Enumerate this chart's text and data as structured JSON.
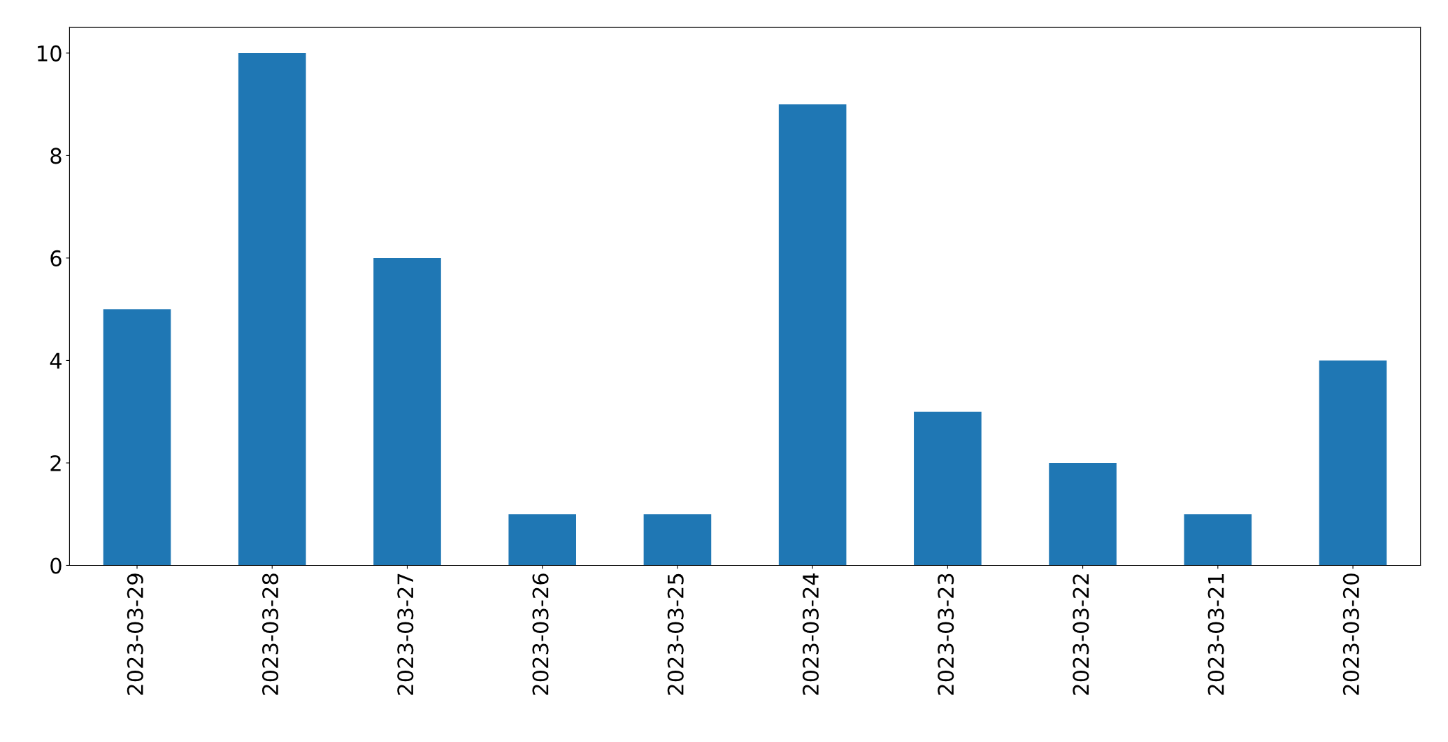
{
  "chart_data": {
    "type": "bar",
    "categories": [
      "2023-03-29",
      "2023-03-28",
      "2023-03-27",
      "2023-03-26",
      "2023-03-25",
      "2023-03-24",
      "2023-03-23",
      "2023-03-22",
      "2023-03-21",
      "2023-03-20"
    ],
    "values": [
      5,
      10,
      6,
      1,
      1,
      9,
      3,
      2,
      1,
      4
    ],
    "color": "#1f77b4",
    "ylim": [
      0,
      10.5
    ],
    "yticks": [
      0,
      2,
      4,
      6,
      8,
      10
    ],
    "grid": false,
    "legend": false
  }
}
